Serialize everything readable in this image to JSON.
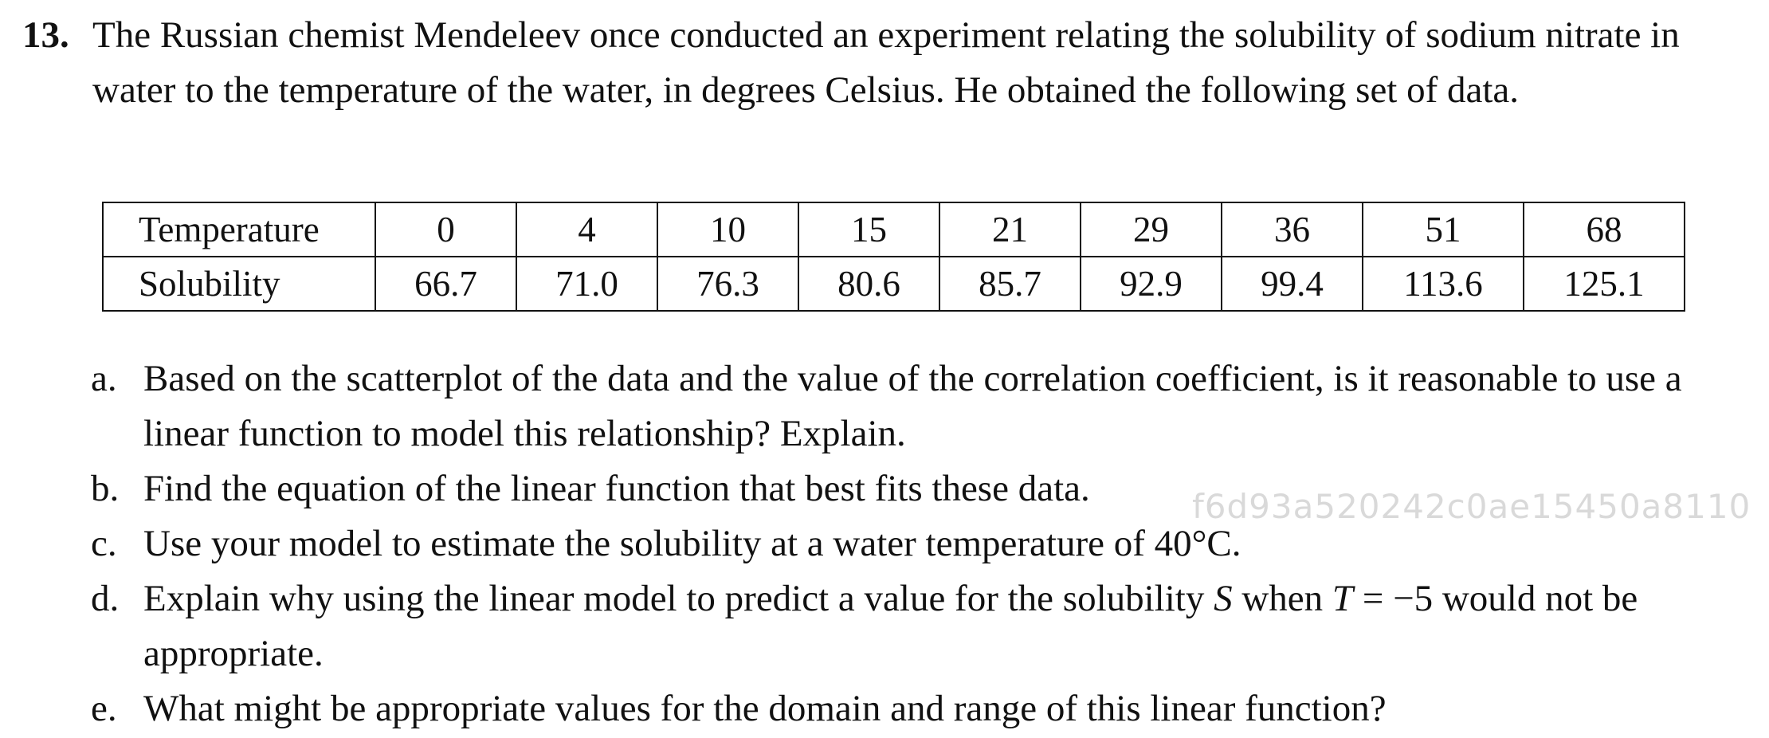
{
  "problem": {
    "number": "13.",
    "intro": "The Russian chemist Mendeleev once conducted an experiment relating the solubility of sodium nitrate in water to the temperature of the water, in degrees Celsius. He obtained the following set of data."
  },
  "table": {
    "rows": [
      {
        "label": "Temperature",
        "values": [
          "0",
          "4",
          "10",
          "15",
          "21",
          "29",
          "36",
          "51",
          "68"
        ]
      },
      {
        "label": "Solubility",
        "values": [
          "66.7",
          "71.0",
          "76.3",
          "80.6",
          "85.7",
          "92.9",
          "99.4",
          "113.6",
          "125.1"
        ]
      }
    ]
  },
  "parts": {
    "a": {
      "letter": "a.",
      "text": "Based on the scatterplot of the data and the value of the correlation coefficient, is it reasonable to use a linear function to model this relationship? Explain."
    },
    "b": {
      "letter": "b.",
      "text": "Find the equation of the linear function that best fits these data."
    },
    "c": {
      "letter": "c.",
      "text": "Use your model to estimate the solubility at a water temperature of 40°C."
    },
    "d": {
      "letter": "d.",
      "text_before_s": "Explain why using the linear model to predict a value for the solubility ",
      "var_s": "S",
      "text_between": " when ",
      "var_t": "T",
      "text_after": " = −5 would not be appropriate."
    },
    "e": {
      "letter": "e.",
      "text": "What might be appropriate values for the domain and range of this linear function?"
    }
  },
  "watermark": "f6d93a520242c0ae15450a8110"
}
